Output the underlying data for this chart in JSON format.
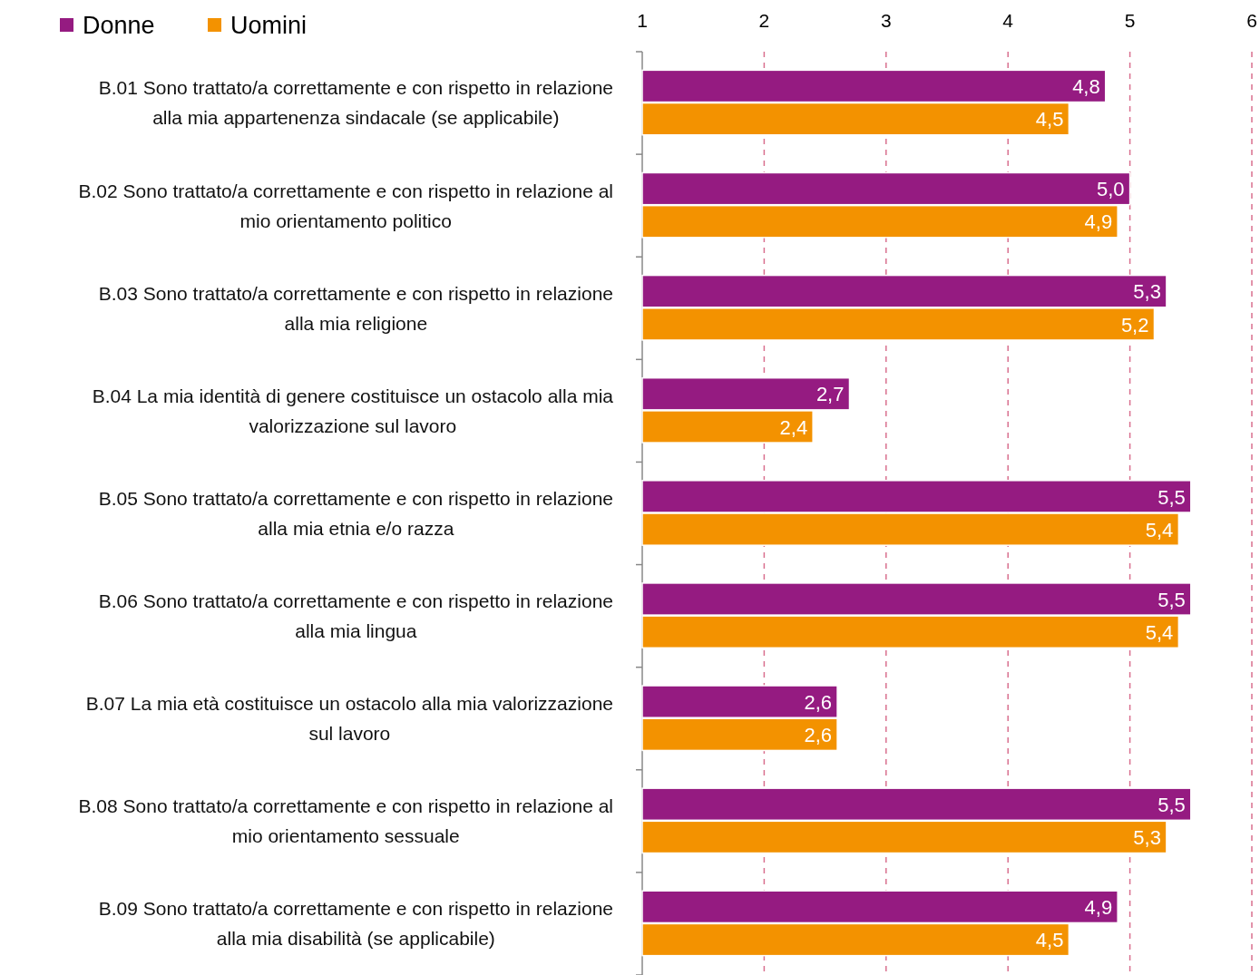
{
  "chart_data": {
    "type": "bar",
    "orientation": "horizontal",
    "categories": [
      "B.01 Sono trattato/a correttamente e con rispetto in relazione alla mia appartenenza sindacale (se applicabile)",
      "B.02 Sono trattato/a correttamente e con rispetto in relazione al mio orientamento politico",
      "B.03 Sono trattato/a correttamente e con rispetto in relazione alla mia religione",
      "B.04 La mia identità di genere costituisce un ostacolo alla mia valorizzazione sul lavoro",
      "B.05 Sono trattato/a correttamente e con rispetto in relazione alla mia etnia e/o razza",
      "B.06 Sono trattato/a correttamente e con rispetto in relazione alla mia lingua",
      "B.07 La mia età costituisce un ostacolo alla mia valorizzazione sul lavoro",
      "B.08 Sono trattato/a correttamente e con rispetto in relazione al mio orientamento sessuale",
      "B.09 Sono trattato/a correttamente e con rispetto in relazione alla mia disabilità (se applicabile)"
    ],
    "series": [
      {
        "name": "Donne",
        "color": "#951b81",
        "values": [
          4.8,
          5.0,
          5.3,
          2.7,
          5.5,
          5.5,
          2.6,
          5.5,
          4.9
        ],
        "value_labels": [
          "4,8",
          "5,0",
          "5,3",
          "2,7",
          "5,5",
          "5,5",
          "2,6",
          "5,5",
          "4,9"
        ]
      },
      {
        "name": "Uomini",
        "color": "#f39200",
        "values": [
          4.5,
          4.9,
          5.2,
          2.4,
          5.4,
          5.4,
          2.6,
          5.3,
          4.5
        ],
        "value_labels": [
          "4,5",
          "4,9",
          "5,2",
          "2,4",
          "5,4",
          "5,4",
          "2,6",
          "5,3",
          "4,5"
        ]
      }
    ],
    "xlim": [
      1,
      6
    ],
    "xticks": [
      1,
      2,
      3,
      4,
      5,
      6
    ],
    "grid": "x",
    "legend": "top left"
  }
}
